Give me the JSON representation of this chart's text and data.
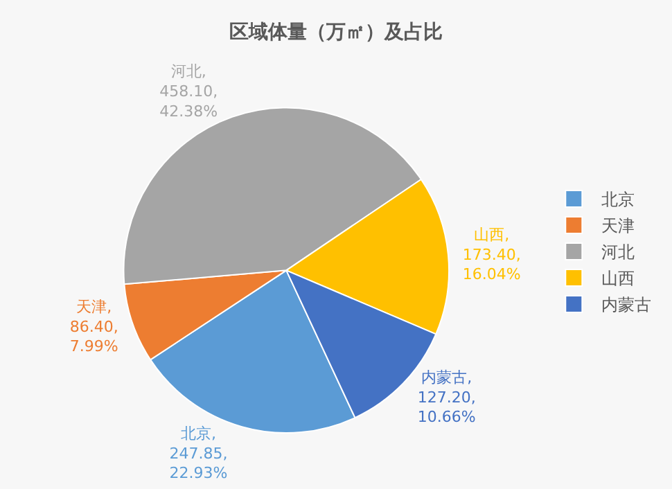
{
  "chart_data": {
    "type": "pie",
    "title": "区域体量（万㎡）及占比",
    "categories": [
      "北京",
      "天津",
      "河北",
      "山西",
      "内蒙古"
    ],
    "values": [
      247.85,
      86.4,
      458.1,
      173.4,
      127.2
    ],
    "colors": [
      "#5b9bd5",
      "#ed7d31",
      "#a5a5a5",
      "#ffc000",
      "#4472c4"
    ],
    "value_labels": [
      "北京, 247.85, 22.93%",
      "天津, 86.40, 7.99%",
      "河北, 458.10, 42.38%",
      "山西, 173.40, 16.04%",
      "内蒙古, 127.20, 10.66%"
    ],
    "legend": "right"
  }
}
